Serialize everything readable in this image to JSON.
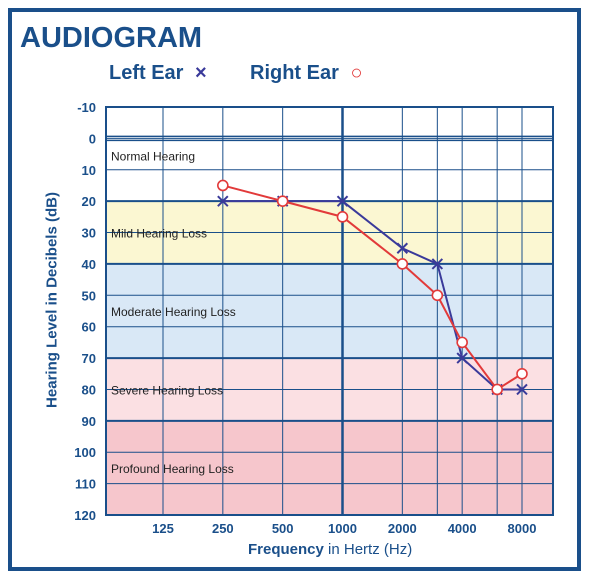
{
  "title": "AUDIOGRAM",
  "legend": {
    "left_label": "Left Ear",
    "left_marker": "×",
    "right_label": "Right Ear",
    "right_marker": "○"
  },
  "colors": {
    "frame": "#1a4f8a",
    "left_ear": "#3a3a9a",
    "right_ear": "#e23a3a",
    "normal": "#ffffff",
    "mild": "#fbf7d2",
    "moderate": "#d9e8f6",
    "severe": "#fbe0e3",
    "profound": "#f6c6cc"
  },
  "chart_data": {
    "type": "line",
    "title": "AUDIOGRAM",
    "ylabel": "Hearing Level in Decibels (dB)",
    "xlabel_bold": "Frequency",
    "xlabel_rest": " in Hertz (Hz)",
    "x_ticks": [
      "125",
      "250",
      "500",
      "1000",
      "2000",
      "4000",
      "8000"
    ],
    "y_ticks": [
      -10,
      0,
      10,
      20,
      30,
      40,
      50,
      60,
      70,
      80,
      90,
      100,
      110,
      120
    ],
    "ylim": [
      -10,
      120
    ],
    "y_inverted": true,
    "x_scale": "log2",
    "grid": true,
    "legend_position": "top-left",
    "bands": [
      {
        "label": "Normal Hearing",
        "from": 0,
        "to": 20,
        "color_key": "normal"
      },
      {
        "label": "Mild Hearing Loss",
        "from": 20,
        "to": 40,
        "color_key": "mild"
      },
      {
        "label": "Moderate Hearing Loss",
        "from": 40,
        "to": 70,
        "color_key": "moderate"
      },
      {
        "label": "Severe Hearing Loss",
        "from": 70,
        "to": 90,
        "color_key": "severe"
      },
      {
        "label": "Profound Hearing Loss",
        "from": 90,
        "to": 120,
        "color_key": "profound"
      }
    ],
    "series": [
      {
        "name": "Left Ear",
        "marker": "x",
        "color_key": "left_ear",
        "points": [
          {
            "x": 250,
            "y": 20
          },
          {
            "x": 500,
            "y": 20
          },
          {
            "x": 1000,
            "y": 20
          },
          {
            "x": 2000,
            "y": 35
          },
          {
            "x": 3000,
            "y": 40
          },
          {
            "x": 4000,
            "y": 70
          },
          {
            "x": 6000,
            "y": 80
          },
          {
            "x": 8000,
            "y": 80
          }
        ]
      },
      {
        "name": "Right Ear",
        "marker": "o",
        "color_key": "right_ear",
        "points": [
          {
            "x": 250,
            "y": 15
          },
          {
            "x": 500,
            "y": 20
          },
          {
            "x": 1000,
            "y": 25
          },
          {
            "x": 2000,
            "y": 40
          },
          {
            "x": 3000,
            "y": 50
          },
          {
            "x": 4000,
            "y": 65
          },
          {
            "x": 6000,
            "y": 80
          },
          {
            "x": 8000,
            "y": 75
          }
        ]
      }
    ]
  }
}
